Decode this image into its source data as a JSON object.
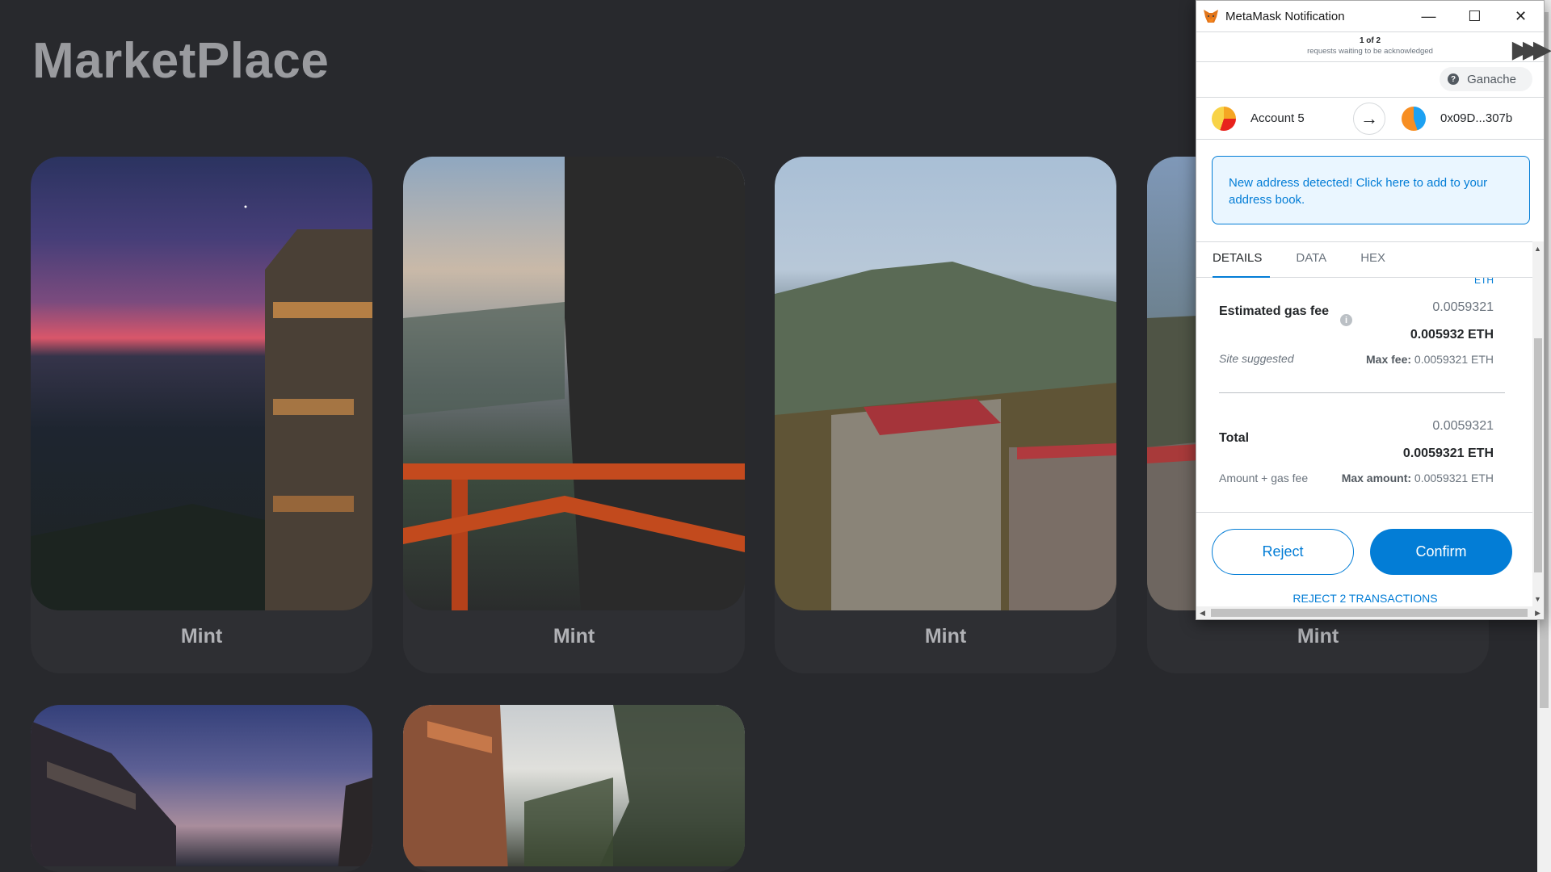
{
  "page": {
    "title": "MarketPlace"
  },
  "cards": [
    {
      "button": "Mint"
    },
    {
      "button": "Mint"
    },
    {
      "button": "Mint"
    },
    {
      "button": "Mint"
    }
  ],
  "metamask": {
    "window_title": "MetaMask Notification",
    "queue": {
      "position": "1 of 2",
      "subtitle": "requests waiting to be acknowledged"
    },
    "network": "Ganache",
    "from_account": "Account 5",
    "to_address": "0x09D...307b",
    "alert": "New address detected! Click here to add to your address book.",
    "tabs": [
      "DETAILS",
      "DATA",
      "HEX"
    ],
    "cut_text": "ETH",
    "gas": {
      "label": "Estimated gas fee",
      "value_small": "0.0059321",
      "value_large": "0.005932 ETH",
      "site_suggested": "Site suggested",
      "max_fee_label": "Max fee:",
      "max_fee_value": "0.0059321 ETH"
    },
    "total": {
      "label": "Total",
      "value_small": "0.0059321",
      "value_large": "0.0059321 ETH",
      "subtitle": "Amount + gas fee",
      "max_amount_label": "Max amount:",
      "max_amount_value": "0.0059321 ETH"
    },
    "reject_label": "Reject",
    "confirm_label": "Confirm",
    "reject_all_label": "REJECT 2 TRANSACTIONS"
  },
  "colors": {
    "accent": "#037dd6",
    "page_bg": "#28292d",
    "card_bg": "#2e2f33"
  }
}
